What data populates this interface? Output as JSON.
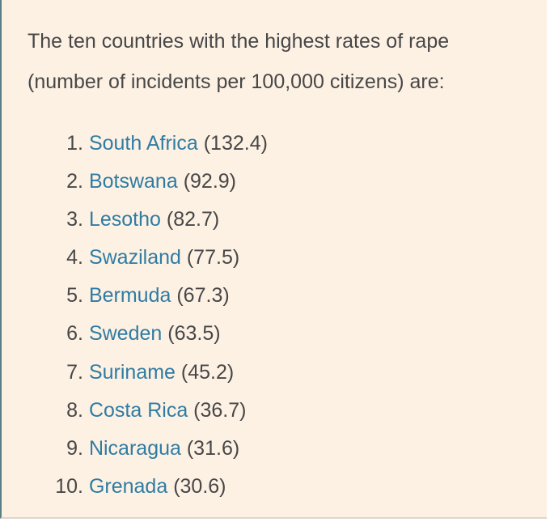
{
  "intro": {
    "line1": "The ten countries with the highest rates of rape",
    "line2": "(number of incidents per 100,000 citizens) are:"
  },
  "list": [
    {
      "rank": "1.",
      "country": "South Africa",
      "rate": "(132.4)"
    },
    {
      "rank": "2.",
      "country": "Botswana",
      "rate": "(92.9)"
    },
    {
      "rank": "3.",
      "country": "Lesotho",
      "rate": "(82.7)"
    },
    {
      "rank": "4.",
      "country": "Swaziland",
      "rate": "(77.5)"
    },
    {
      "rank": "5.",
      "country": "Bermuda",
      "rate": "(67.3)"
    },
    {
      "rank": "6.",
      "country": "Sweden",
      "rate": "(63.5)"
    },
    {
      "rank": "7.",
      "country": "Suriname",
      "rate": "(45.2)"
    },
    {
      "rank": "8.",
      "country": "Costa Rica",
      "rate": "(36.7)"
    },
    {
      "rank": "9.",
      "country": "Nicaragua",
      "rate": "(31.6)"
    },
    {
      "rank": "10.",
      "country": "Grenada",
      "rate": "(30.6)"
    }
  ],
  "colors": {
    "background": "#fdf1e4",
    "text": "#474747",
    "link": "#2f7ca3",
    "left_border": "#5b7f86"
  }
}
